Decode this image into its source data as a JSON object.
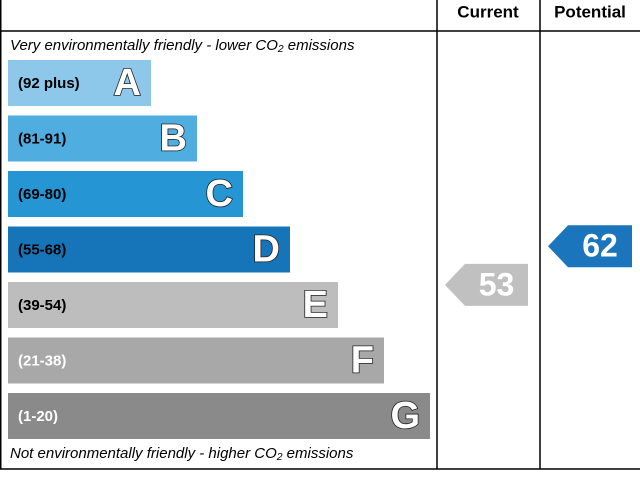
{
  "header": {
    "current": "Current",
    "potential": "Potential"
  },
  "top_note": "Very environmentally friendly - lower CO₂ emissions",
  "bottom_note": "Not environmentally friendly - higher CO₂ emissions",
  "bands": [
    {
      "range": "(92 plus)",
      "letter": "A",
      "color": "#8dc8ea"
    },
    {
      "range": "(81-91)",
      "letter": "B",
      "color": "#4fade0"
    },
    {
      "range": "(69-80)",
      "letter": "C",
      "color": "#2596d3"
    },
    {
      "range": "(55-68)",
      "letter": "D",
      "color": "#1674b8"
    },
    {
      "range": "(39-54)",
      "letter": "E",
      "color": "#bdbdbd"
    },
    {
      "range": "(21-38)",
      "letter": "F",
      "color": "#a8a8a8"
    },
    {
      "range": "(1-20)",
      "letter": "G",
      "color": "#8a8a8a"
    }
  ],
  "current": {
    "value": 53,
    "color": "#c0c0c0"
  },
  "potential": {
    "value": 62,
    "color": "#1b75bc"
  }
}
